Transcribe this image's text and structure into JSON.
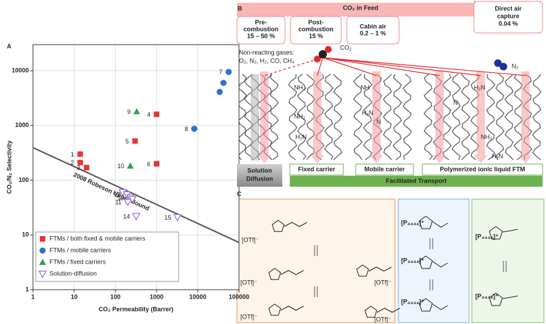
{
  "chart_data": {
    "type": "scatter",
    "panel": "A",
    "x_label": "CO₂ Permeability (Barrer)",
    "y_label": "CO₂/N₂ Selectivity",
    "xlim": [
      1,
      100000
    ],
    "ylim": [
      1,
      30000
    ],
    "log_x": true,
    "log_y": true,
    "xticks": [
      1,
      10,
      100,
      1000,
      10000,
      100000
    ],
    "yticks": [
      1,
      10,
      100,
      1000,
      10000
    ],
    "grid": true,
    "legend": "lower left",
    "series": [
      {
        "name": "FTMs / both fixed & mobile carriers",
        "color": "#e8333a",
        "marker": "square",
        "x": [
          14,
          14,
          20,
          1000,
          300,
          1000
        ],
        "values": [
          300,
          210,
          170,
          1600,
          520,
          200
        ],
        "point_labels": [
          "1",
          "2",
          "3",
          "4",
          "5",
          "6"
        ]
      },
      {
        "name": "FTMs / mobile carriers",
        "color": "#2d6fd6",
        "marker": "circle",
        "x": [
          56000,
          42000,
          34000,
          8200
        ],
        "values": [
          9500,
          6000,
          4100,
          870
        ],
        "point_labels": [
          "7",
          null,
          null,
          "8"
        ]
      },
      {
        "name": "FTMs / fixed carriers",
        "color": "#2ea44f",
        "marker": "triangle",
        "x": [
          330,
          230
        ],
        "values": [
          1800,
          183
        ],
        "point_labels": [
          "9",
          "10"
        ]
      },
      {
        "name": "Solution-diffusion",
        "color": "#9b6ad6",
        "marker": "open-down-triangle",
        "x": [
          150,
          190,
          230,
          200,
          260,
          320,
          3200
        ],
        "values": [
          60,
          55,
          48,
          40,
          45,
          22,
          21
        ],
        "point_labels": [
          null,
          "12",
          "13",
          "11",
          null,
          "14",
          "15"
        ]
      }
    ],
    "bound_line": {
      "label": "2008 Robeson Upper Bound",
      "color": "#555555",
      "x": [
        1,
        100000
      ],
      "values": [
        394,
        7.3
      ]
    }
  },
  "panel_b": {
    "letter": "B",
    "feed_title": "CO₂ in Feed",
    "feed_boxes": [
      [
        "Pre-",
        "combustion",
        "15 – 50 %"
      ],
      [
        "Post-",
        "combustion",
        "15 %"
      ],
      [
        "Cabin air",
        "0.2 – 1 %"
      ]
    ],
    "direct_air": [
      "Direct air",
      "capture",
      "0.04 %"
    ],
    "non_reacting": [
      "Non-reacting gases:",
      "O₂, N₂, H₂, CO, CH₄"
    ],
    "co2": "CO₂",
    "n2": "N₂",
    "solution_diffusion": [
      "Solution",
      "Diffusion"
    ],
    "columns": [
      "Fixed carrier",
      "Mobile carrier",
      "Polymerized ionic liquid FTM"
    ],
    "facilitated": "Facilitated Transport",
    "groups": [
      "NH₂",
      "NH₂",
      "H₂N",
      "NH",
      "H₂N",
      "N",
      "H₂N",
      "N",
      "NH₂",
      "H₂N"
    ]
  },
  "panel_c": {
    "letter": "C",
    "box1_labels": [
      "[OTf]⁻",
      "[OTf]⁻",
      "[OTf]⁻",
      "[OTf]⁻",
      "[OTf]⁻"
    ],
    "box2_labels": [
      "[P₄₄₄₄]⁺",
      "[P₄₄₄₄]⁺",
      "[P₄₄₄₄]⁺"
    ],
    "box3_labels": [
      "[P₄₄₄₄]⁺",
      "[P₄₄₄₄]⁺"
    ]
  }
}
